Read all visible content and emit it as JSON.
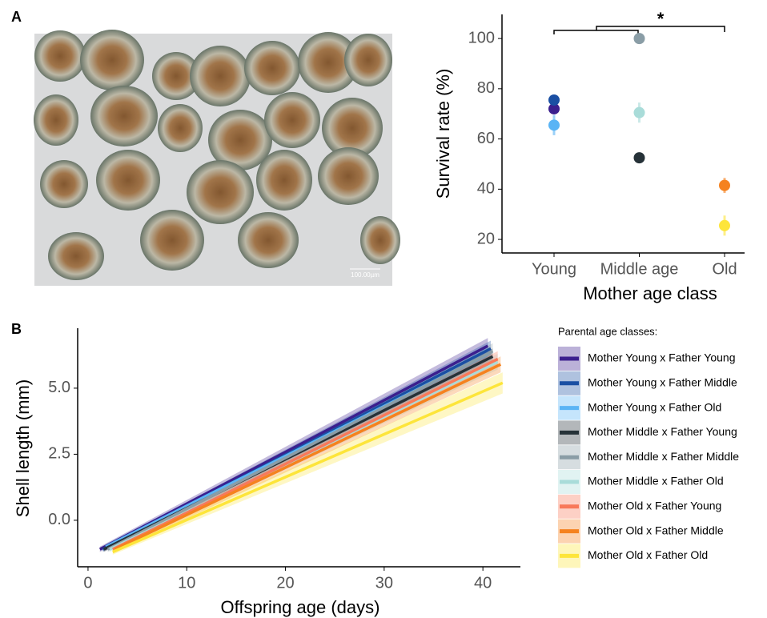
{
  "image": {
    "scale_label": "100.00µm"
  },
  "chart_data": [
    {
      "type": "dot",
      "panel": "A",
      "x_label": "Mother age class",
      "y_label": "Survival rate (%)",
      "categories": [
        "Young",
        "Middle age",
        "Old"
      ],
      "ylim": [
        14.6,
        109.6
      ],
      "yticks": [
        20,
        40,
        60,
        80,
        100
      ],
      "annotation": "*",
      "series": [
        {
          "color": "#3b1f8e",
          "values": [
            72,
            null,
            null
          ],
          "errors": [
            1.5,
            null,
            null
          ]
        },
        {
          "color": "#1a4fa3",
          "values": [
            75.5,
            null,
            null
          ],
          "errors": [
            1,
            null,
            null
          ]
        },
        {
          "color": "#5ab4f5",
          "values": [
            65.5,
            null,
            null
          ],
          "errors": [
            4,
            null,
            null
          ]
        },
        {
          "color": "#263238",
          "values": [
            null,
            52.5,
            null
          ],
          "errors": [
            null,
            1,
            null
          ]
        },
        {
          "color": "#8a9da6",
          "values": [
            null,
            100,
            null
          ],
          "errors": [
            null,
            1,
            null
          ]
        },
        {
          "color": "#a9dcd9",
          "values": [
            null,
            70.5,
            null
          ],
          "errors": [
            null,
            4,
            null
          ]
        },
        {
          "color": "#f5821f",
          "values": [
            null,
            null,
            41.5
          ],
          "errors": [
            null,
            null,
            3
          ]
        },
        {
          "color": "#fde53a",
          "values": [
            null,
            null,
            25.5
          ],
          "errors": [
            null,
            null,
            4
          ]
        }
      ]
    },
    {
      "type": "line",
      "panel": "B",
      "x_label": "Offspring age (days)",
      "y_label": "Shell length (mm)",
      "legend_title": "Parental age classes:",
      "xlim": [
        -1.05,
        43.8
      ],
      "xticks": [
        0,
        10,
        20,
        30,
        40
      ],
      "ylim": [
        -1.76,
        7.27
      ],
      "yticks": [
        {
          "value": 0,
          "label": "0.0"
        },
        {
          "value": 2.5,
          "label": "2.5"
        },
        {
          "value": 5,
          "label": "5.0"
        }
      ],
      "series": [
        {
          "name": "Mother Young x Father Young",
          "color": "#3b1f8e",
          "x": [
            1.2,
            40.5
          ],
          "values": [
            -1.1,
            6.6
          ],
          "errors": [
            0.1,
            0.3
          ]
        },
        {
          "name": "Mother Young x Father Middle",
          "color": "#1a4fa3",
          "x": [
            1.5,
            40.8
          ],
          "values": [
            -1.1,
            6.5
          ],
          "errors": [
            0.1,
            0.3
          ]
        },
        {
          "name": "Mother Young x Father Old",
          "color": "#5ab4f5",
          "x": [
            1.8,
            40.5
          ],
          "values": [
            -1.0,
            6.3
          ],
          "errors": [
            0.1,
            0.3
          ]
        },
        {
          "name": "Mother Middle x Father Young",
          "color": "#263238",
          "x": [
            1.6,
            41
          ],
          "values": [
            -1.1,
            6.2
          ],
          "errors": [
            0.1,
            0.3
          ]
        },
        {
          "name": "Mother Middle x Father Middle",
          "color": "#8a9da6",
          "x": [
            2.0,
            41
          ],
          "values": [
            -1.1,
            6.4
          ],
          "errors": [
            0.1,
            0.3
          ]
        },
        {
          "name": "Mother Middle x Father Old",
          "color": "#a9dcd9",
          "x": [
            2.2,
            41.5
          ],
          "values": [
            -1.1,
            6.0
          ],
          "errors": [
            0.1,
            0.3
          ]
        },
        {
          "name": "Mother Old x Father Young",
          "color": "#f8795a",
          "x": [
            2.5,
            41.5
          ],
          "values": [
            -1.1,
            6.1
          ],
          "errors": [
            0.1,
            0.3
          ]
        },
        {
          "name": "Mother Old x Father Middle",
          "color": "#f5821f",
          "x": [
            2.7,
            41.8
          ],
          "values": [
            -1.1,
            5.9
          ],
          "errors": [
            0.1,
            0.3
          ]
        },
        {
          "name": "Mother Old x Father Old",
          "color": "#fde53a",
          "x": [
            2.5,
            42
          ],
          "values": [
            -1.2,
            5.2
          ],
          "errors": [
            0.1,
            0.4
          ]
        }
      ]
    }
  ]
}
